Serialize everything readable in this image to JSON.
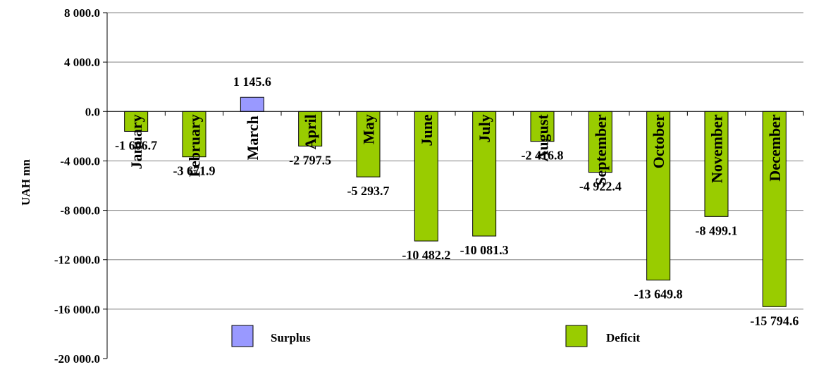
{
  "chart_data": {
    "type": "bar",
    "categories": [
      "January",
      "February",
      "March",
      "April",
      "May",
      "June",
      "July",
      "August",
      "September",
      "October",
      "November",
      "December"
    ],
    "values": [
      -1606.7,
      -3671.9,
      1145.6,
      -2797.5,
      -5293.7,
      -10482.2,
      -10081.3,
      -2416.8,
      -4922.4,
      -13649.8,
      -8499.1,
      -15794.6
    ],
    "data_labels": [
      "-1 606.7",
      "-3 671.9",
      "1 145.6",
      "-2 797.5",
      "-5 293.7",
      "-10 482.2",
      "-10 081.3",
      "-2 416.8",
      "-4 922.4",
      "-13 649.8",
      "-8 499.1",
      "-15 794.6"
    ],
    "ylabel": "UAH mn",
    "ylim": [
      -20000,
      8000
    ],
    "yticks": [
      8000,
      4000,
      0,
      -4000,
      -8000,
      -12000,
      -16000,
      -20000
    ],
    "ytick_labels": [
      "8 000.0",
      "4 000.0",
      "0.0",
      "-4 000.0",
      "-8 000.0",
      "-12 000.0",
      "-16 000.0",
      "-20 000.0"
    ],
    "grid": true,
    "legend": [
      {
        "name": "Surplus",
        "color": "#9999ff"
      },
      {
        "name": "Deficit",
        "color": "#99cc00"
      }
    ],
    "legend_position": "bottom",
    "colors": {
      "surplus": "#9999ff",
      "deficit": "#99cc00",
      "gridline": "#808080",
      "axis": "#000000"
    }
  }
}
